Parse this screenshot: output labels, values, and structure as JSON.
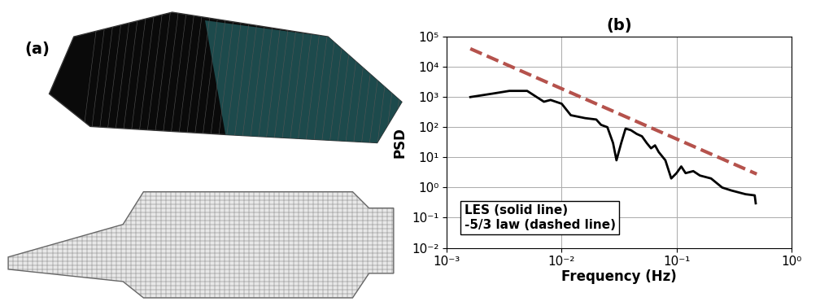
{
  "panel_a": {
    "label": "(a)"
  },
  "chart_data": {
    "type": "line",
    "title": "(b)",
    "x_label": "Frequency (Hz)",
    "y_label": "PSD",
    "log": true,
    "grid": true,
    "xlim": [
      0.001,
      1
    ],
    "ylim": [
      0.01,
      100000
    ],
    "xticks": [
      {
        "value": 0.001,
        "label": "10⁻³"
      },
      {
        "value": 0.01,
        "label": "10⁻²"
      },
      {
        "value": 0.1,
        "label": "10⁻¹"
      },
      {
        "value": 1,
        "label": "10⁰"
      }
    ],
    "yticks": [
      {
        "value": 0.01,
        "label": "10⁻²"
      },
      {
        "value": 0.1,
        "label": "10⁻¹"
      },
      {
        "value": 1,
        "label": "10⁰"
      },
      {
        "value": 10,
        "label": "10¹"
      },
      {
        "value": 100,
        "label": "10²"
      },
      {
        "value": 1000,
        "label": "10³"
      },
      {
        "value": 10000,
        "label": "10⁴"
      },
      {
        "value": 100000,
        "label": "10⁵"
      }
    ],
    "annotations": [
      "LES (solid line)",
      "-5/3 law (dashed line)"
    ],
    "series": [
      {
        "color": "#000000",
        "line_style": "solid",
        "x": [
          0.0016,
          0.0025,
          0.0035,
          0.005,
          0.007,
          0.008,
          0.01,
          0.012,
          0.016,
          0.02,
          0.022,
          0.025,
          0.028,
          0.03,
          0.033,
          0.036,
          0.04,
          0.045,
          0.05,
          0.055,
          0.06,
          0.065,
          0.07,
          0.08,
          0.09,
          0.1,
          0.11,
          0.12,
          0.14,
          0.16,
          0.2,
          0.25,
          0.3,
          0.4,
          0.48,
          0.49
        ],
        "values": [
          1000,
          1300,
          1600,
          1600,
          700,
          800,
          600,
          250,
          200,
          180,
          120,
          100,
          30,
          8,
          30,
          90,
          80,
          60,
          50,
          30,
          20,
          25,
          15,
          8,
          2,
          3,
          5,
          3,
          3.5,
          2.5,
          2,
          1,
          0.8,
          0.6,
          0.55,
          0.3
        ]
      },
      {
        "color": "#b5524c",
        "line_style": "dashed",
        "x": [
          0.0016,
          0.5
        ],
        "values": [
          40000,
          2.8
        ]
      }
    ]
  }
}
